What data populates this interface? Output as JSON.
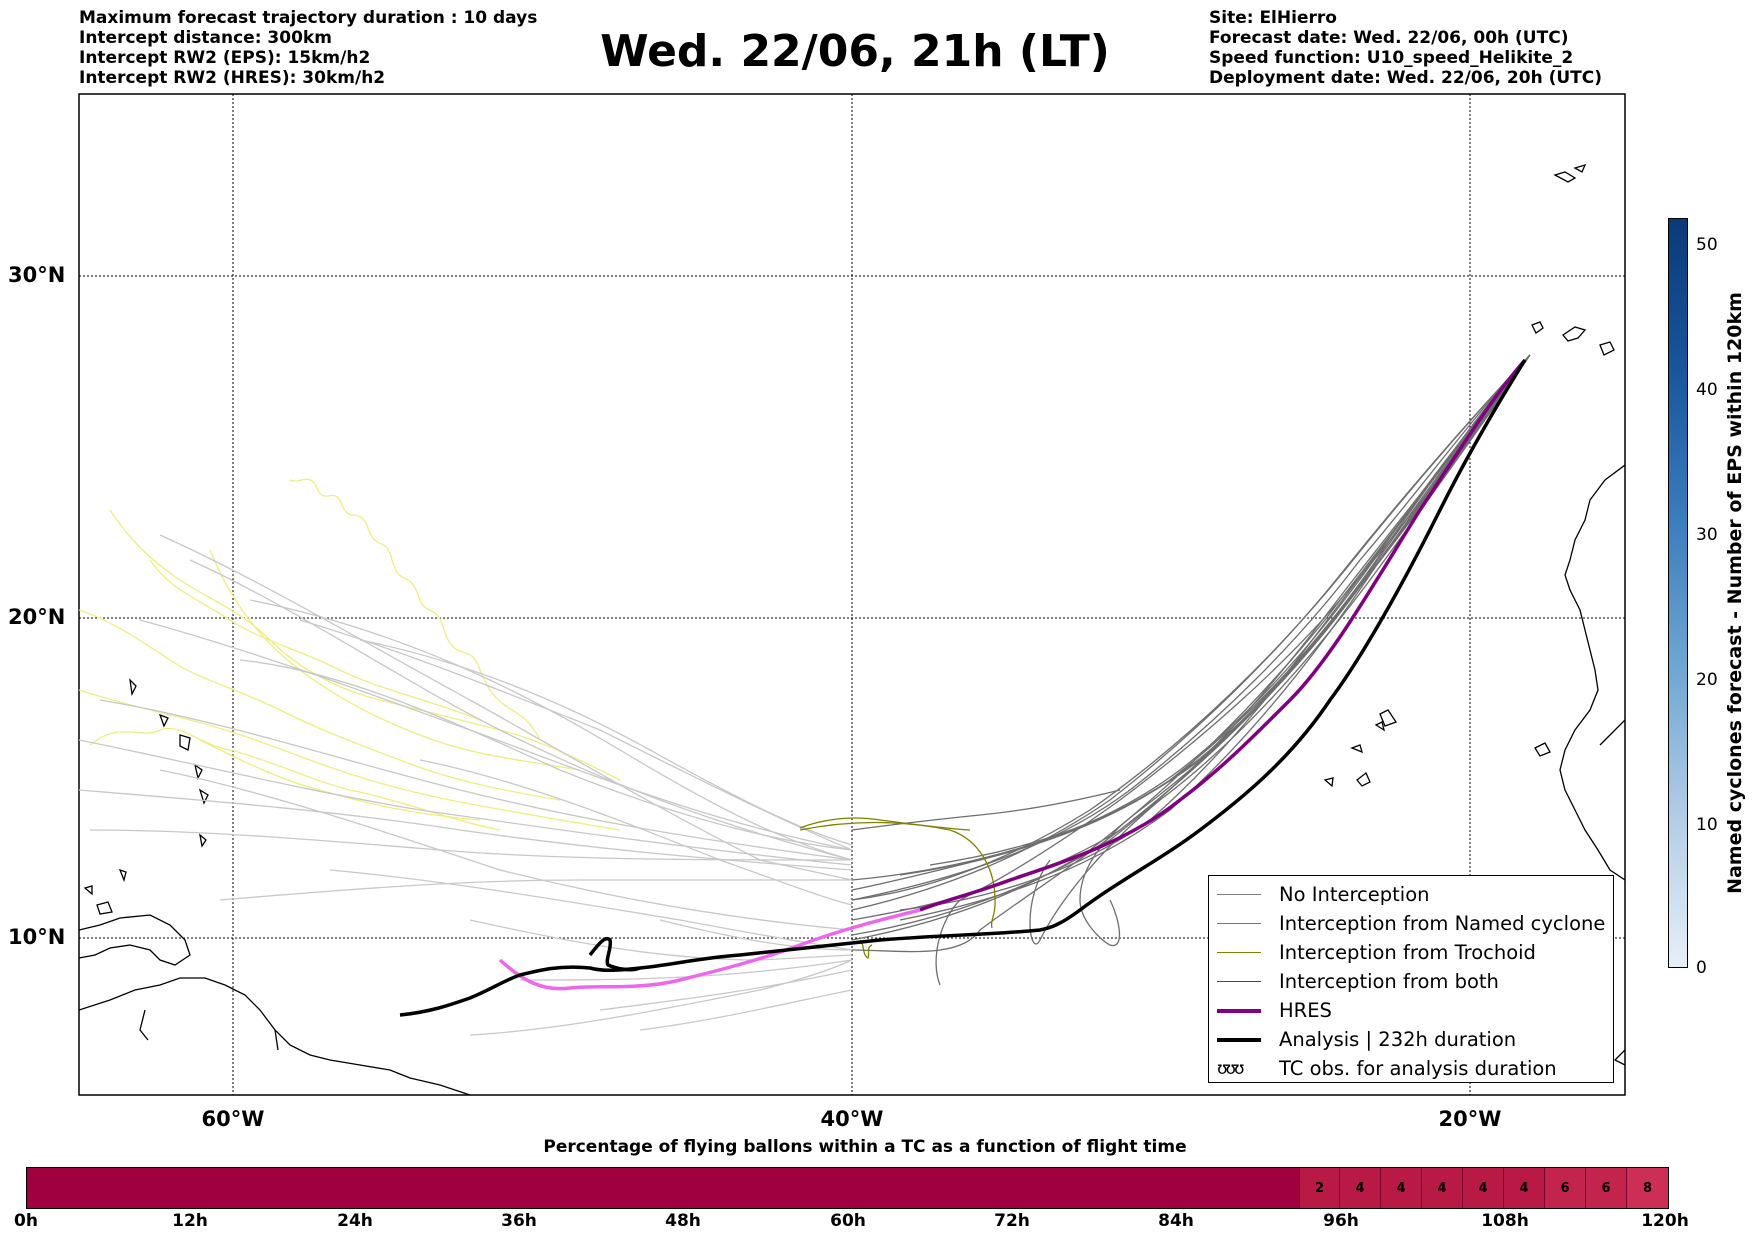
{
  "header_left": [
    "Maximum forecast trajectory duration : 10 days",
    "Intercept distance: 300km",
    "Intercept RW2 (EPS):  15km/h2",
    "Intercept RW2 (HRES): 30km/h2"
  ],
  "title": "Wed. 22/06, 21h (LT)",
  "header_right": [
    "Site: ElHierro",
    "Forecast date: Wed. 22/06, 00h (UTC)",
    "Speed function: U10_speed_Helikite_2",
    "Deployment date: Wed. 22/06, 20h (UTC)"
  ],
  "map": {
    "lat_labels": [
      "30°N",
      "20°N",
      "10°N"
    ],
    "lon_labels": [
      "60°W",
      "40°W",
      "20°W"
    ]
  },
  "legend": [
    {
      "label": "No Interception",
      "color": "#808080"
    },
    {
      "label": "Interception from Named cyclone",
      "color": "#ff4500"
    },
    {
      "label": "Interception from Trochoid",
      "color": "#808000"
    },
    {
      "label": "Interception from both",
      "color": "#008000"
    },
    {
      "label": "HRES",
      "color": "#800080"
    },
    {
      "label": "Analysis | 232h duration",
      "color": "#000000"
    },
    {
      "label": "TC obs. for analysis duration",
      "symbol": "ʊʊʊ"
    }
  ],
  "cyclone_colorbar": {
    "label": "Named cyclones forecast - Number of EPS within 120km",
    "ticks": [
      "50",
      "40",
      "30",
      "20",
      "10",
      "0"
    ]
  },
  "flight_colorbar": {
    "title": "Percentage of flying ballons within a TC as a function of flight time",
    "time_ticks": [
      "0h",
      "12h",
      "24h",
      "36h",
      "48h",
      "60h",
      "72h",
      "84h",
      "96h",
      "108h",
      "120h"
    ],
    "percentages": [
      "2",
      "4",
      "4",
      "4",
      "4",
      "4",
      "6",
      "6",
      "8"
    ]
  },
  "colors": {
    "eps_light": "#c8c8c8",
    "eps_dark": "#6e6e6e",
    "trochoid": "#eeee80",
    "hres": "#800080",
    "hres_light": "#ee66ee",
    "analysis": "#000000"
  }
}
